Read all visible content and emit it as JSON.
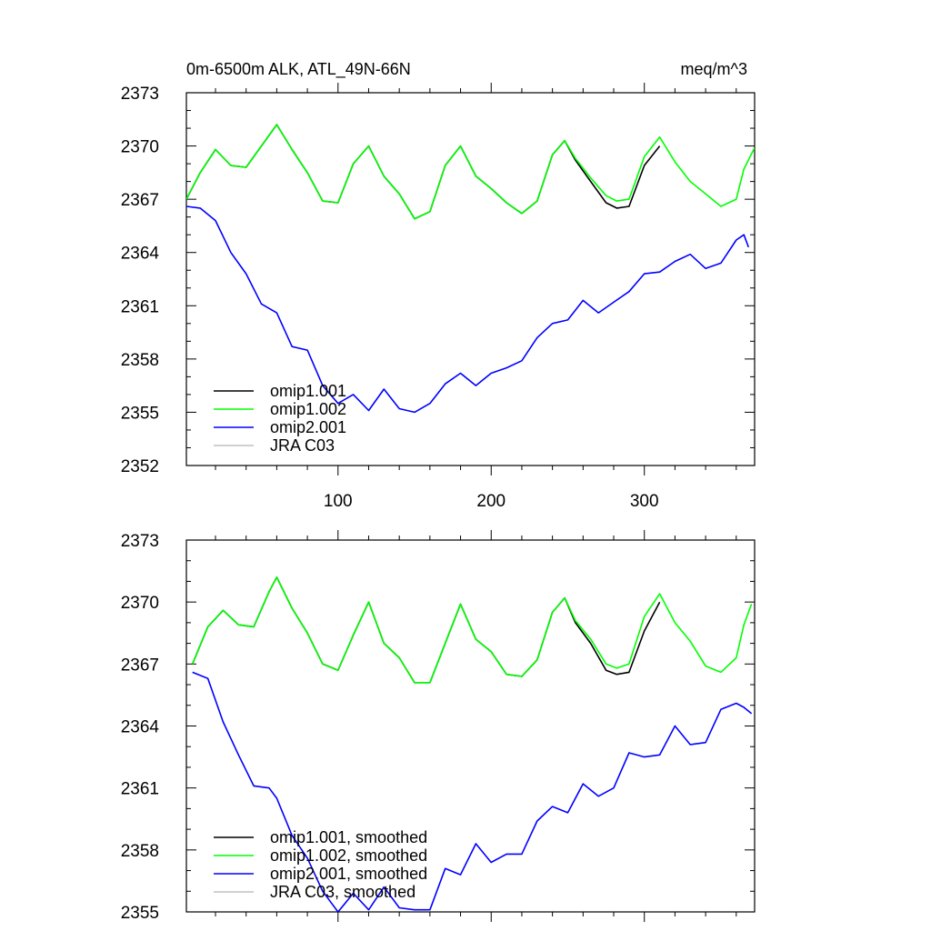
{
  "chart_data": [
    {
      "type": "line",
      "title": "0m-6500m ALK, ATL_49N-66N",
      "units": "meq/m^3",
      "xlim": [
        1,
        372
      ],
      "ylim": [
        2352,
        2373
      ],
      "x_ticks": [
        100,
        200,
        300
      ],
      "y_ticks": [
        2352,
        2355,
        2358,
        2361,
        2364,
        2367,
        2370,
        2373
      ],
      "grid": false,
      "legend_position": "bottom-left",
      "legend": [
        "omip1.001",
        "omip1.002",
        "omip2.001",
        "JRA C03"
      ],
      "series": [
        {
          "name": "omip1.001",
          "color": "#000000",
          "x": [
            1,
            10,
            20,
            30,
            40,
            50,
            60,
            70,
            80,
            90,
            100,
            110,
            120,
            130,
            140,
            150,
            160,
            170,
            180,
            190,
            200,
            210,
            220,
            230,
            240,
            248,
            255,
            265,
            275,
            282,
            290,
            300,
            310
          ],
          "y": [
            2367.0,
            2368.5,
            2369.8,
            2368.9,
            2368.8,
            2370.0,
            2371.2,
            2369.8,
            2368.5,
            2366.9,
            2366.8,
            2369.0,
            2370.0,
            2368.3,
            2367.3,
            2365.9,
            2366.3,
            2368.9,
            2370.0,
            2368.3,
            2367.6,
            2366.8,
            2366.2,
            2366.9,
            2369.5,
            2370.3,
            2369.2,
            2368.0,
            2366.8,
            2366.5,
            2366.6,
            2368.9,
            2370.0
          ]
        },
        {
          "name": "omip1.002",
          "color": "#00ff00",
          "x": [
            1,
            10,
            20,
            30,
            40,
            50,
            60,
            70,
            80,
            90,
            100,
            110,
            120,
            130,
            140,
            150,
            160,
            170,
            180,
            190,
            200,
            210,
            220,
            230,
            240,
            248,
            255,
            265,
            275,
            282,
            290,
            300,
            310,
            320,
            330,
            340,
            350,
            360,
            365,
            372
          ],
          "y": [
            2367.0,
            2368.5,
            2369.8,
            2368.9,
            2368.8,
            2370.0,
            2371.2,
            2369.8,
            2368.5,
            2366.9,
            2366.8,
            2369.0,
            2370.0,
            2368.3,
            2367.3,
            2365.9,
            2366.3,
            2368.9,
            2370.0,
            2368.3,
            2367.6,
            2366.8,
            2366.2,
            2366.9,
            2369.5,
            2370.3,
            2369.3,
            2368.2,
            2367.2,
            2366.9,
            2367.0,
            2369.4,
            2370.5,
            2369.1,
            2368.0,
            2367.3,
            2366.6,
            2367.0,
            2368.7,
            2369.9
          ]
        },
        {
          "name": "omip2.001",
          "color": "#0000ff",
          "x": [
            1,
            10,
            20,
            30,
            40,
            50,
            60,
            70,
            80,
            90,
            100,
            110,
            120,
            130,
            140,
            150,
            160,
            170,
            180,
            190,
            200,
            210,
            220,
            230,
            240,
            250,
            260,
            270,
            280,
            290,
            300,
            310,
            320,
            330,
            340,
            350,
            360,
            365,
            368
          ],
          "y": [
            2366.6,
            2366.5,
            2365.8,
            2364.0,
            2362.8,
            2361.1,
            2360.6,
            2358.7,
            2358.5,
            2356.5,
            2355.5,
            2356.0,
            2355.1,
            2356.3,
            2355.2,
            2355.0,
            2355.5,
            2356.6,
            2357.2,
            2356.5,
            2357.2,
            2357.5,
            2357.9,
            2359.2,
            2360.0,
            2360.2,
            2361.3,
            2360.6,
            2361.2,
            2361.8,
            2362.8,
            2362.9,
            2363.5,
            2363.9,
            2363.1,
            2363.4,
            2364.7,
            2365.0,
            2364.3
          ]
        },
        {
          "name": "JRA C03",
          "color": "#c0c0c0",
          "x": [],
          "y": []
        }
      ]
    },
    {
      "type": "line",
      "title": "",
      "xlim": [
        1,
        372
      ],
      "ylim": [
        2355,
        2373
      ],
      "x_ticks": [
        100,
        200,
        300
      ],
      "y_ticks": [
        2355,
        2358,
        2361,
        2364,
        2367,
        2370,
        2373
      ],
      "grid": false,
      "legend_position": "bottom-left",
      "legend": [
        "omip1.001, smoothed",
        "omip1.002, smoothed",
        "omip2.001, smoothed",
        "JRA C03, smoothed"
      ],
      "series": [
        {
          "name": "omip1.001, smoothed",
          "color": "#000000",
          "x": [
            5,
            15,
            25,
            35,
            45,
            55,
            60,
            70,
            80,
            90,
            100,
            110,
            120,
            130,
            140,
            150,
            160,
            170,
            180,
            190,
            200,
            210,
            220,
            230,
            240,
            248,
            255,
            265,
            275,
            282,
            290,
            300,
            310
          ],
          "y": [
            2367.0,
            2368.8,
            2369.6,
            2368.9,
            2368.8,
            2370.5,
            2371.2,
            2369.7,
            2368.5,
            2367.0,
            2366.7,
            2368.4,
            2370.0,
            2368.0,
            2367.3,
            2366.1,
            2366.1,
            2368.0,
            2369.9,
            2368.2,
            2367.6,
            2366.5,
            2366.4,
            2367.2,
            2369.5,
            2370.2,
            2369.0,
            2368.0,
            2366.7,
            2366.5,
            2366.6,
            2368.6,
            2370.0
          ]
        },
        {
          "name": "omip1.002, smoothed",
          "color": "#00ff00",
          "x": [
            5,
            15,
            25,
            35,
            45,
            55,
            60,
            70,
            80,
            90,
            100,
            110,
            120,
            130,
            140,
            150,
            160,
            170,
            180,
            190,
            200,
            210,
            220,
            230,
            240,
            248,
            255,
            265,
            275,
            282,
            290,
            300,
            310,
            320,
            330,
            340,
            350,
            360,
            365,
            370
          ],
          "y": [
            2367.0,
            2368.8,
            2369.6,
            2368.9,
            2368.8,
            2370.5,
            2371.2,
            2369.7,
            2368.5,
            2367.0,
            2366.7,
            2368.4,
            2370.0,
            2368.0,
            2367.3,
            2366.1,
            2366.1,
            2368.0,
            2369.9,
            2368.2,
            2367.6,
            2366.5,
            2366.4,
            2367.2,
            2369.5,
            2370.2,
            2369.1,
            2368.2,
            2367.0,
            2366.8,
            2367.0,
            2369.3,
            2370.4,
            2369.0,
            2368.1,
            2366.9,
            2366.6,
            2367.3,
            2368.9,
            2369.9
          ]
        },
        {
          "name": "omip2.001, smoothed",
          "color": "#0000ff",
          "x": [
            5,
            15,
            25,
            35,
            45,
            55,
            60,
            70,
            80,
            90,
            100,
            110,
            120,
            130,
            140,
            150,
            160,
            170,
            180,
            190,
            200,
            210,
            220,
            230,
            240,
            250,
            260,
            270,
            280,
            290,
            300,
            310,
            320,
            330,
            340,
            350,
            360,
            365,
            370
          ],
          "y": [
            2366.6,
            2366.3,
            2364.2,
            2362.6,
            2361.1,
            2361.0,
            2360.5,
            2358.7,
            2357.6,
            2356.0,
            2355.0,
            2355.9,
            2355.1,
            2356.2,
            2355.2,
            2355.1,
            2355.1,
            2357.1,
            2356.8,
            2358.3,
            2357.4,
            2357.8,
            2357.8,
            2359.4,
            2360.1,
            2359.8,
            2361.2,
            2360.6,
            2361.0,
            2362.7,
            2362.5,
            2362.6,
            2364.0,
            2363.1,
            2363.2,
            2364.8,
            2365.1,
            2364.9,
            2364.6
          ]
        },
        {
          "name": "JRA C03, smoothed",
          "color": "#c0c0c0",
          "x": [],
          "y": []
        }
      ]
    }
  ]
}
